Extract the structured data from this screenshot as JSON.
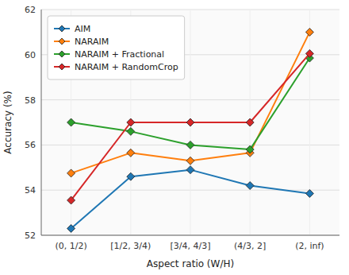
{
  "chart_data": {
    "type": "line",
    "xlabel": "Aspect ratio (W/H)",
    "ylabel": "Accuracy (%)",
    "categories": [
      "(0, 1/2)",
      "[1/2, 3/4)",
      "[3/4, 4/3]",
      "(4/3, 2]",
      "(2, inf)"
    ],
    "series": [
      {
        "name": "AIM",
        "color": "#1f77b4",
        "values": [
          52.3,
          54.6,
          54.9,
          54.2,
          53.85
        ]
      },
      {
        "name": "NARAIM",
        "color": "#ff7f0e",
        "values": [
          54.75,
          55.65,
          55.3,
          55.65,
          61.0
        ]
      },
      {
        "name": "NARAIM + Fractional",
        "color": "#2ca02c",
        "values": [
          57.0,
          56.6,
          56.0,
          55.8,
          59.85
        ]
      },
      {
        "name": "NARAIM + RandomCrop",
        "color": "#d62728",
        "values": [
          53.55,
          57.0,
          57.0,
          57.0,
          60.05
        ]
      }
    ],
    "ylim": [
      52,
      62
    ],
    "yticks": [
      52,
      54,
      56,
      58,
      60,
      62
    ],
    "grid": true,
    "legend": "upper left",
    "marker": "diamond"
  }
}
